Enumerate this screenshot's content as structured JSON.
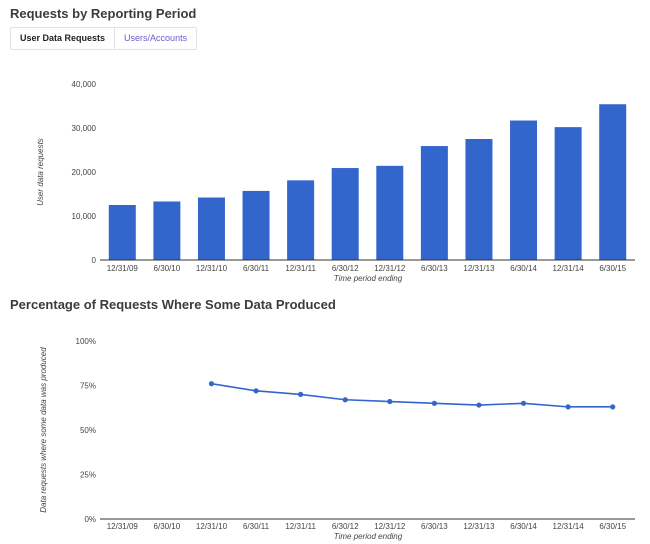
{
  "section1_title": "Requests by Reporting Period",
  "tabs": [
    {
      "label": "User Data Requests",
      "active": true
    },
    {
      "label": "Users/Accounts",
      "active": false
    }
  ],
  "section2_title": "Percentage of Requests Where Some Data Produced",
  "colors": {
    "bar": "#3366cc",
    "line": "#3366cc",
    "tab_link": "#6a5ec8"
  },
  "chart_data": [
    {
      "type": "bar",
      "categories": [
        "12/31/09",
        "6/30/10",
        "12/31/10",
        "6/30/11",
        "12/31/11",
        "6/30/12",
        "12/31/12",
        "6/30/13",
        "12/31/13",
        "6/30/14",
        "12/31/14",
        "6/30/15"
      ],
      "values": [
        12500,
        13300,
        14200,
        15700,
        18100,
        20900,
        21400,
        25900,
        27500,
        31700,
        30200,
        35400
      ],
      "ylabel": "User data requests",
      "xlabel": "Time period ending",
      "ylim": [
        0,
        40000
      ],
      "yticks": [
        "0",
        "10,000",
        "20,000",
        "30,000",
        "40,000"
      ],
      "grid": false,
      "legend": "none"
    },
    {
      "type": "line",
      "categories": [
        "12/31/09",
        "6/30/10",
        "12/31/10",
        "6/30/11",
        "12/31/11",
        "6/30/12",
        "12/31/12",
        "6/30/13",
        "12/31/13",
        "6/30/14",
        "12/31/14",
        "6/30/15"
      ],
      "values": [
        null,
        null,
        76,
        72,
        70,
        67,
        66,
        65,
        64,
        65,
        63,
        63
      ],
      "ylabel": "Data requests where some data was produced",
      "xlabel": "Time period ending",
      "ylim": [
        0,
        100
      ],
      "yticks": [
        "0%",
        "25%",
        "50%",
        "75%",
        "100%"
      ],
      "grid": false,
      "legend": "none"
    }
  ]
}
